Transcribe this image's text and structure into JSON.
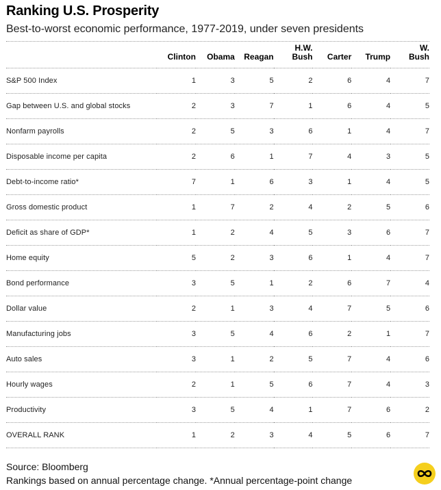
{
  "chart_data": {
    "type": "table",
    "title": "Ranking U.S. Prosperity",
    "subtitle": "Best-to-worst economic performance, 1977-2019, under seven presidents",
    "columns": [
      {
        "line1": "",
        "line2": "Clinton"
      },
      {
        "line1": "",
        "line2": "Obama"
      },
      {
        "line1": "",
        "line2": "Reagan"
      },
      {
        "line1": "H.W.",
        "line2": "Bush"
      },
      {
        "line1": "",
        "line2": "Carter"
      },
      {
        "line1": "",
        "line2": "Trump"
      },
      {
        "line1": "W.",
        "line2": "Bush"
      }
    ],
    "rows": [
      {
        "label": "S&P 500 Index",
        "values": [
          1,
          3,
          5,
          2,
          6,
          4,
          7
        ]
      },
      {
        "label": "Gap between U.S. and global stocks",
        "values": [
          2,
          3,
          7,
          1,
          6,
          4,
          5
        ]
      },
      {
        "label": "Nonfarm payrolls",
        "values": [
          2,
          5,
          3,
          6,
          1,
          4,
          7
        ]
      },
      {
        "label": "Disposable income per capita",
        "values": [
          2,
          6,
          1,
          7,
          4,
          3,
          5
        ]
      },
      {
        "label": "Debt-to-income ratio*",
        "values": [
          7,
          1,
          6,
          3,
          1,
          4,
          5
        ]
      },
      {
        "label": "Gross domestic product",
        "values": [
          1,
          7,
          2,
          4,
          2,
          5,
          6
        ]
      },
      {
        "label": "Deficit as share of GDP*",
        "values": [
          1,
          2,
          4,
          5,
          3,
          6,
          7
        ]
      },
      {
        "label": "Home equity",
        "values": [
          5,
          2,
          3,
          6,
          1,
          4,
          7
        ]
      },
      {
        "label": "Bond performance",
        "values": [
          3,
          5,
          1,
          2,
          6,
          7,
          4
        ]
      },
      {
        "label": "Dollar value",
        "values": [
          2,
          1,
          3,
          4,
          7,
          5,
          6
        ]
      },
      {
        "label": "Manufacturing jobs",
        "values": [
          3,
          5,
          4,
          6,
          2,
          1,
          7
        ]
      },
      {
        "label": "Auto sales",
        "values": [
          3,
          1,
          2,
          5,
          7,
          4,
          6
        ]
      },
      {
        "label": "Hourly wages",
        "values": [
          2,
          1,
          5,
          6,
          7,
          4,
          3
        ]
      },
      {
        "label": "Productivity",
        "values": [
          3,
          5,
          4,
          1,
          7,
          6,
          2
        ]
      },
      {
        "label": "OVERALL RANK",
        "values": [
          1,
          2,
          3,
          4,
          5,
          6,
          7
        ]
      }
    ]
  },
  "footer": {
    "source": "Source: Bloomberg",
    "note": "Rankings based on annual percentage change. *Annual percentage-point change"
  },
  "colors": {
    "logo": "#f5cf1d",
    "rule": "#9a9a9a"
  },
  "icons": {
    "logo": "bloomberg-infinity-logo-icon"
  }
}
